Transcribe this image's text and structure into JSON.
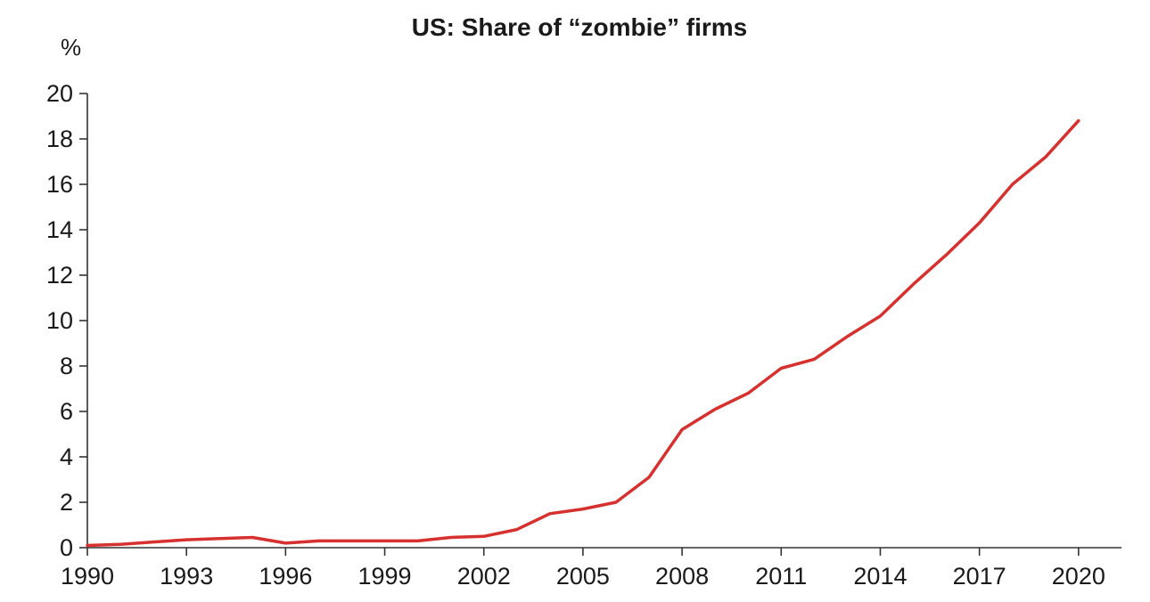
{
  "chart_data": {
    "type": "line",
    "title": "US: Share of “zombie” firms",
    "ylabel": "%",
    "xlabel": "",
    "ylim": [
      0,
      20
    ],
    "yticks": [
      0,
      2,
      4,
      6,
      8,
      10,
      12,
      14,
      16,
      18,
      20
    ],
    "xlim": [
      1990,
      2021.3
    ],
    "xticks": [
      1990,
      1993,
      1996,
      1999,
      2002,
      2005,
      2008,
      2011,
      2014,
      2017,
      2020
    ],
    "grid": false,
    "legend": "none",
    "line_color": "#d7312f",
    "series": [
      {
        "x": [
          1990,
          1991,
          1992,
          1993,
          1994,
          1995,
          1996,
          1997,
          1998,
          1999,
          2000,
          2001,
          2002,
          2003,
          2004,
          2005,
          2006,
          2007,
          2008,
          2009,
          2010,
          2011,
          2012,
          2013,
          2014,
          2015,
          2016,
          2017,
          2018,
          2019,
          2020
        ],
        "values": [
          0.1,
          0.15,
          0.25,
          0.35,
          0.4,
          0.45,
          0.2,
          0.3,
          0.3,
          0.3,
          0.3,
          0.45,
          0.5,
          0.8,
          1.5,
          1.7,
          2.0,
          3.1,
          5.2,
          6.1,
          6.8,
          7.9,
          8.3,
          9.3,
          10.2,
          11.6,
          12.9,
          14.3,
          16.0,
          17.2,
          18.8
        ]
      }
    ]
  }
}
